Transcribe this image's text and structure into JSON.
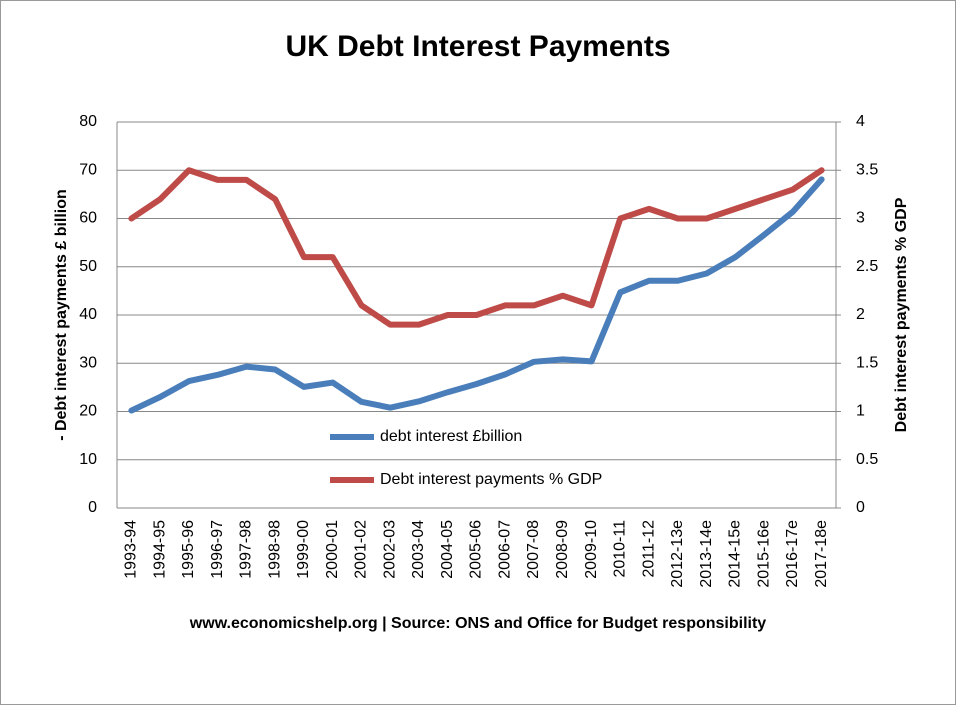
{
  "chart_data": {
    "type": "line",
    "title": "UK Debt Interest Payments",
    "footer": "www.economicshelp.org | Source: ONS and Office for Budget responsibility",
    "ylabel": "- Debt interest payments £ billion",
    "y2label": "Debt interest payments % GDP",
    "categories": [
      "1993-94",
      "1994-95",
      "1995-96",
      "1996-97",
      "1997-98",
      "1998-98",
      "1999-00",
      "2000-01",
      "2001-02",
      "2002-03",
      "2003-04",
      "2004-05",
      "2005-06",
      "2006-07",
      "2007-08",
      "2008-09",
      "2009-10",
      "2010-11",
      "2011-12",
      "2012-13e",
      "2013-14e",
      "2014-15e",
      "2015-16e",
      "2016-17e",
      "2017-18e"
    ],
    "series": [
      {
        "name": "debt interest £billion",
        "color": "#4a7ebb",
        "values": [
          20.2,
          23,
          26.3,
          27.6,
          29.3,
          28.7,
          25.1,
          26,
          22,
          20.8,
          22.1,
          24,
          25.7,
          27.7,
          30.3,
          30.8,
          30.4,
          44.7,
          47.1,
          47.1,
          48.6,
          52,
          56.6,
          61.4,
          68.1
        ]
      },
      {
        "name": "Debt interest payments % GDP",
        "color": "#be4b48",
        "axis": "y2",
        "values": [
          3.0,
          3.2,
          3.5,
          3.4,
          3.4,
          3.2,
          2.6,
          2.6,
          2.1,
          1.9,
          1.9,
          2.0,
          2.0,
          2.1,
          2.1,
          2.2,
          2.1,
          3.0,
          3.1,
          3.0,
          3.0,
          3.1,
          3.2,
          3.3,
          3.5
        ]
      }
    ],
    "ylim": [
      0,
      80
    ],
    "yticks": [
      0,
      10,
      20,
      30,
      40,
      50,
      60,
      70,
      80
    ],
    "y2lim": [
      0,
      4
    ],
    "y2ticks": [
      0,
      0.5,
      1,
      1.5,
      2,
      2.5,
      3,
      3.5,
      4
    ],
    "grid": true
  }
}
